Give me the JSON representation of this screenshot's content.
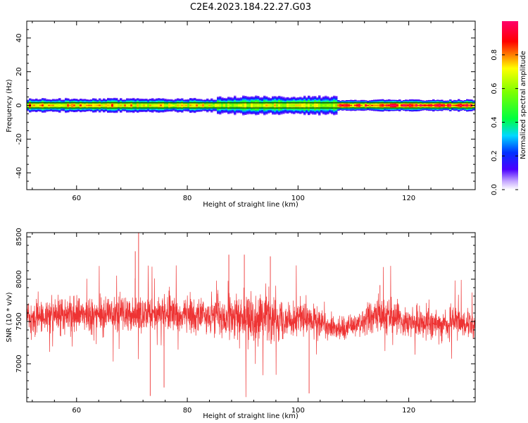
{
  "figure": {
    "title": "C2E4.2023.184.22.27.G03"
  },
  "chart_data": [
    {
      "type": "heatmap",
      "title": "C2E4.2023.184.22.27.G03",
      "xlabel": "Height of straight line (km)",
      "ylabel": "Frequency (Hz)",
      "xlim": [
        51,
        132
      ],
      "ylim": [
        -50,
        50
      ],
      "x_ticks": [
        60,
        80,
        100,
        120
      ],
      "y_ticks": [
        40,
        20,
        0,
        -20,
        -40
      ],
      "y_tick_labels": [
        "40",
        "20",
        "0",
        "-20",
        "-40"
      ],
      "colorbar": {
        "label": "Normalized spectral amplitude",
        "range": [
          0,
          1
        ],
        "ticks": [
          0.0,
          0.2,
          0.4,
          0.6,
          0.8
        ],
        "tick_labels": [
          "0.0",
          "0.2",
          "0.4",
          "0.6",
          "0.8"
        ],
        "colormap": "gist_ncar-like"
      },
      "description_band": "Energy concentrated near 0 Hz across all heights; band half-width ~3 Hz",
      "band": {
        "center_hz": 0,
        "segments": [
          {
            "x_start": 51,
            "x_end": 70,
            "peak": 0.8,
            "halfwidth_hz": 3
          },
          {
            "x_start": 70,
            "x_end": 85,
            "peak": 0.75,
            "halfwidth_hz": 3
          },
          {
            "x_start": 85,
            "x_end": 107,
            "peak": 0.7,
            "halfwidth_hz": 4
          },
          {
            "x_start": 107,
            "x_end": 132,
            "peak": 0.95,
            "halfwidth_hz": 2.5
          }
        ]
      },
      "reference_lines_hz": [
        1.5,
        -1.5
      ]
    },
    {
      "type": "line",
      "xlabel": "Height of straight line (km)",
      "ylabel": "SNR (10 * v/v)",
      "xlim": [
        51,
        132
      ],
      "ylim": [
        6550,
        8550
      ],
      "x_ticks": [
        60,
        80,
        100,
        120
      ],
      "y_ticks": [
        7000,
        7500,
        8000,
        8500
      ],
      "series": [
        {
          "color": "#ee3333",
          "mean_profile": [
            {
              "x": 51,
              "y": 7550
            },
            {
              "x": 60,
              "y": 7580
            },
            {
              "x": 70,
              "y": 7600
            },
            {
              "x": 80,
              "y": 7570
            },
            {
              "x": 90,
              "y": 7550
            },
            {
              "x": 100,
              "y": 7530
            },
            {
              "x": 108,
              "y": 7420
            },
            {
              "x": 115,
              "y": 7580
            },
            {
              "x": 122,
              "y": 7470
            },
            {
              "x": 132,
              "y": 7480
            }
          ],
          "noise_amplitude": 180,
          "notable_points": [
            {
              "x": 71.2,
              "y": 8560
            },
            {
              "x": 73.3,
              "y": 6620
            },
            {
              "x": 70.6,
              "y": 8330
            },
            {
              "x": 87.5,
              "y": 8290
            },
            {
              "x": 95.0,
              "y": 8270
            },
            {
              "x": 102.0,
              "y": 6650
            },
            {
              "x": 75.8,
              "y": 6720
            },
            {
              "x": 90.3,
              "y": 8290
            },
            {
              "x": 114.8,
              "y": 7930
            }
          ]
        }
      ]
    }
  ]
}
